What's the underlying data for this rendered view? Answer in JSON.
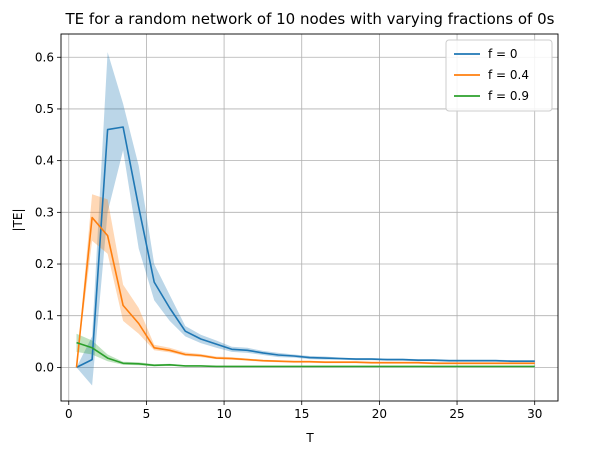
{
  "chart_data": {
    "type": "line",
    "title": "TE for a random network of 10 nodes with varying fractions of 0s",
    "xlabel": "T",
    "ylabel": "|TE|",
    "xlim": [
      -0.5,
      31.5
    ],
    "ylim": [
      -0.065,
      0.645
    ],
    "xticks": [
      0,
      5,
      10,
      15,
      20,
      25,
      30
    ],
    "xtick_labels": [
      "0",
      "5",
      "10",
      "15",
      "20",
      "25",
      "30"
    ],
    "yticks": [
      0.0,
      0.1,
      0.2,
      0.3,
      0.4,
      0.5,
      0.6
    ],
    "ytick_labels": [
      "0.0",
      "0.1",
      "0.2",
      "0.3",
      "0.4",
      "0.5",
      "0.6"
    ],
    "grid": true,
    "legend_position": "top-right",
    "x": [
      0.5,
      1.5,
      2.5,
      3.5,
      4.5,
      5.5,
      6.5,
      7.5,
      8.5,
      9.5,
      10.5,
      11.5,
      12.5,
      13.5,
      14.5,
      15.5,
      16.5,
      17.5,
      18.5,
      19.5,
      20.5,
      21.5,
      22.5,
      23.5,
      24.5,
      25.5,
      26.5,
      27.5,
      28.5,
      29.5,
      30.0
    ],
    "series": [
      {
        "name": "f = 0",
        "color": "#1f77b4",
        "values": [
          0.0,
          0.015,
          0.46,
          0.465,
          0.31,
          0.165,
          0.115,
          0.07,
          0.055,
          0.045,
          0.035,
          0.033,
          0.028,
          0.024,
          0.022,
          0.019,
          0.018,
          0.017,
          0.016,
          0.016,
          0.015,
          0.015,
          0.014,
          0.014,
          0.013,
          0.013,
          0.013,
          0.013,
          0.012,
          0.012,
          0.012
        ],
        "lower": [
          0.0,
          -0.035,
          0.3,
          0.42,
          0.23,
          0.13,
          0.09,
          0.06,
          0.047,
          0.038,
          0.03,
          0.028,
          0.024,
          0.02,
          0.019,
          0.016,
          0.015,
          0.015,
          0.014,
          0.014,
          0.013,
          0.013,
          0.012,
          0.012,
          0.011,
          0.011,
          0.011,
          0.011,
          0.01,
          0.01,
          0.01
        ],
        "upper": [
          0.0,
          0.06,
          0.61,
          0.51,
          0.39,
          0.2,
          0.14,
          0.08,
          0.063,
          0.052,
          0.04,
          0.038,
          0.032,
          0.028,
          0.025,
          0.022,
          0.021,
          0.019,
          0.018,
          0.018,
          0.017,
          0.017,
          0.016,
          0.016,
          0.015,
          0.015,
          0.015,
          0.015,
          0.014,
          0.014,
          0.014
        ]
      },
      {
        "name": "f = 0.4",
        "color": "#ff7f0e",
        "values": [
          0.0,
          0.29,
          0.255,
          0.12,
          0.085,
          0.038,
          0.033,
          0.025,
          0.023,
          0.018,
          0.017,
          0.015,
          0.013,
          0.012,
          0.011,
          0.011,
          0.01,
          0.01,
          0.01,
          0.009,
          0.009,
          0.009,
          0.009,
          0.008,
          0.008,
          0.008,
          0.008,
          0.008,
          0.008,
          0.008,
          0.008
        ],
        "lower": [
          0.0,
          0.245,
          0.22,
          0.09,
          0.065,
          0.033,
          0.029,
          0.022,
          0.02,
          0.016,
          0.015,
          0.013,
          0.011,
          0.01,
          0.009,
          0.009,
          0.008,
          0.008,
          0.008,
          0.007,
          0.007,
          0.007,
          0.007,
          0.006,
          0.006,
          0.006,
          0.006,
          0.006,
          0.006,
          0.006,
          0.006
        ],
        "upper": [
          0.0,
          0.335,
          0.325,
          0.16,
          0.115,
          0.044,
          0.038,
          0.029,
          0.026,
          0.021,
          0.02,
          0.017,
          0.015,
          0.014,
          0.013,
          0.013,
          0.012,
          0.012,
          0.012,
          0.011,
          0.011,
          0.011,
          0.011,
          0.01,
          0.01,
          0.01,
          0.01,
          0.01,
          0.01,
          0.01,
          0.01
        ]
      },
      {
        "name": "f = 0.9",
        "color": "#2ca02c",
        "values": [
          0.048,
          0.038,
          0.018,
          0.008,
          0.007,
          0.004,
          0.005,
          0.003,
          0.003,
          0.002,
          0.002,
          0.002,
          0.002,
          0.002,
          0.002,
          0.002,
          0.002,
          0.002,
          0.002,
          0.002,
          0.002,
          0.002,
          0.002,
          0.002,
          0.002,
          0.002,
          0.002,
          0.002,
          0.002,
          0.002,
          0.002
        ],
        "lower": [
          0.03,
          0.025,
          0.012,
          0.005,
          0.004,
          0.002,
          0.003,
          0.002,
          0.002,
          0.001,
          0.001,
          0.001,
          0.001,
          0.001,
          0.001,
          0.001,
          0.001,
          0.001,
          0.001,
          0.001,
          0.001,
          0.001,
          0.001,
          0.001,
          0.001,
          0.001,
          0.001,
          0.001,
          0.001,
          0.001,
          0.001
        ],
        "upper": [
          0.065,
          0.052,
          0.025,
          0.011,
          0.01,
          0.006,
          0.007,
          0.004,
          0.004,
          0.003,
          0.003,
          0.003,
          0.003,
          0.003,
          0.003,
          0.003,
          0.003,
          0.003,
          0.003,
          0.003,
          0.003,
          0.003,
          0.003,
          0.003,
          0.003,
          0.003,
          0.003,
          0.003,
          0.003,
          0.003,
          0.003
        ]
      }
    ]
  }
}
